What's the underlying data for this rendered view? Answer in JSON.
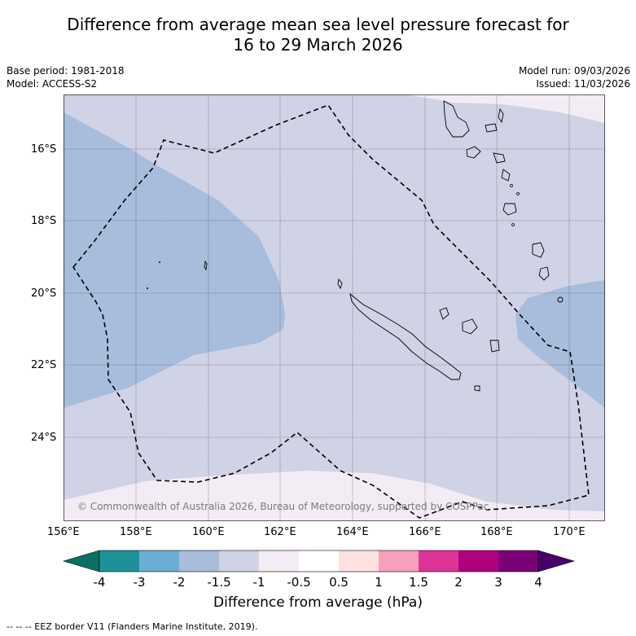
{
  "title": {
    "line1": "Difference from average mean sea level pressure forecast for",
    "line2": "16 to 29 March 2026"
  },
  "meta": {
    "base_period": "Base period: 1981-2018",
    "model": "Model: ACCESS-S2",
    "model_run": "Model run: 09/03/2026",
    "issued": "Issued: 11/03/2026"
  },
  "map": {
    "copyright": "© Commonwealth of Australia 2026, Bureau of Meteorology, supported by COSPPac",
    "lat_labels": [
      "16°S",
      "18°S",
      "20°S",
      "22°S",
      "24°S"
    ],
    "lon_labels": [
      "156°E",
      "158°E",
      "160°E",
      "162°E",
      "164°E",
      "166°E",
      "168°E",
      "170°E"
    ],
    "colors": {
      "neg2": "#a8bcdc",
      "neg15": "#d0d2e6",
      "neg1": "#f3ecf5",
      "coast": "#000000",
      "grid": "#555555"
    }
  },
  "colorbar": {
    "tick_labels": [
      "-4",
      "-3",
      "-2",
      "-1.5",
      "-1",
      "-0.5",
      "0.5",
      "1",
      "1.5",
      "2",
      "3",
      "4"
    ],
    "segment_colors": [
      "#0b6f63",
      "#1e9198",
      "#6aaed6",
      "#a8bcdc",
      "#d0d2e6",
      "#f3ecf5",
      "#ffffff",
      "#fde0e0",
      "#f7a0bc",
      "#dd3497",
      "#ae017e",
      "#7a0177",
      "#49006a"
    ],
    "label": "Difference from average (hPa)"
  },
  "footer": {
    "eez_note": "--  --  -- EEZ border V11 (Flanders Marine Institute, 2019)."
  }
}
